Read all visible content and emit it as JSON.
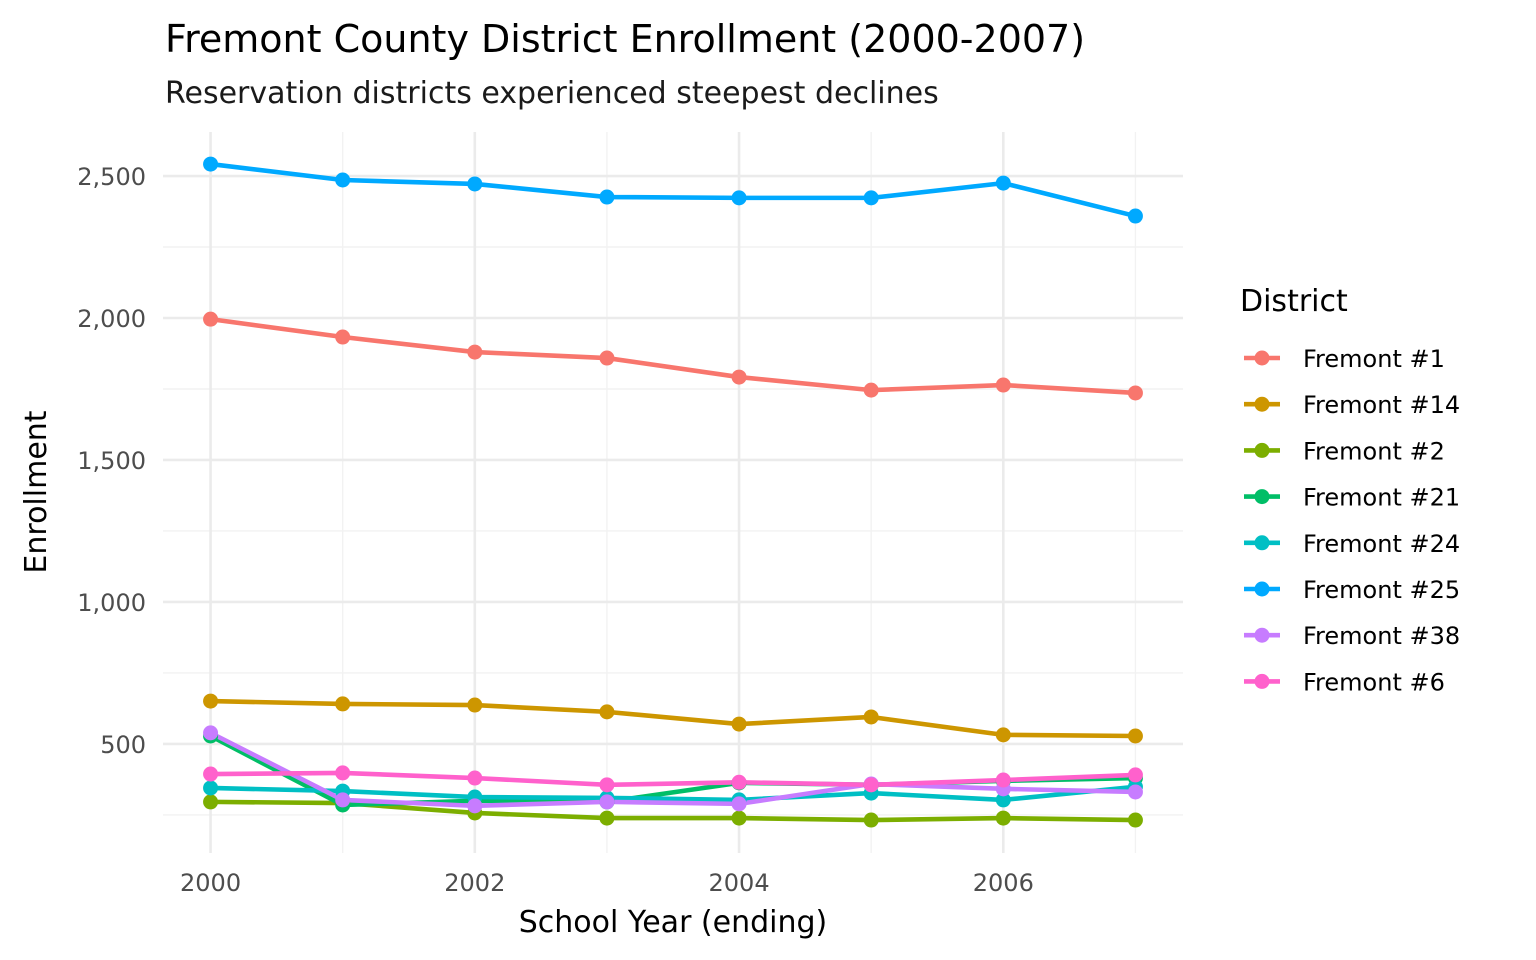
{
  "chart_data": {
    "type": "line",
    "title": "Fremont County District Enrollment (2000-2007)",
    "subtitle": "Reservation districts experienced steepest declines",
    "xlabel": "School Year (ending)",
    "ylabel": "Enrollment",
    "x": [
      2000,
      2001,
      2002,
      2003,
      2004,
      2005,
      2006,
      2007
    ],
    "xlim": [
      1999.64,
      2007.36
    ],
    "ylim": [
      116,
      2655
    ],
    "x_ticks": [
      2000,
      2002,
      2004,
      2006
    ],
    "x_tick_labels": [
      "2000",
      "2002",
      "2004",
      "2006"
    ],
    "y_ticks": [
      500,
      1000,
      1500,
      2000,
      2500
    ],
    "y_tick_labels": [
      "500",
      "1,000",
      "1,500",
      "2,000",
      "2,500"
    ],
    "grid": true,
    "legend": {
      "title": "District",
      "position": "right"
    },
    "series": [
      {
        "name": "Fremont #1",
        "color": "#F8766D",
        "values": [
          1996,
          1933,
          1880,
          1859,
          1792,
          1746,
          1764,
          1736
        ]
      },
      {
        "name": "Fremont #14",
        "color": "#CD9600",
        "values": [
          651,
          641,
          637,
          613,
          570,
          595,
          532,
          528
        ]
      },
      {
        "name": "Fremont #2",
        "color": "#7CAE00",
        "values": [
          296,
          292,
          257,
          239,
          239,
          232,
          239,
          232
        ]
      },
      {
        "name": "Fremont #21",
        "color": "#00BE67",
        "values": [
          528,
          285,
          300,
          296,
          363,
          356,
          370,
          380
        ]
      },
      {
        "name": "Fremont #24",
        "color": "#00BFC4",
        "values": [
          345,
          334,
          313,
          310,
          303,
          327,
          303,
          349
        ]
      },
      {
        "name": "Fremont #25",
        "color": "#00A9FF",
        "values": [
          2542,
          2486,
          2472,
          2426,
          2423,
          2423,
          2475,
          2359
        ]
      },
      {
        "name": "Fremont #38",
        "color": "#C77CFF",
        "values": [
          539,
          303,
          282,
          296,
          289,
          359,
          342,
          331
        ]
      },
      {
        "name": "Fremont #6",
        "color": "#FF61CC",
        "values": [
          394,
          398,
          380,
          356,
          365,
          356,
          373,
          391
        ]
      }
    ]
  }
}
